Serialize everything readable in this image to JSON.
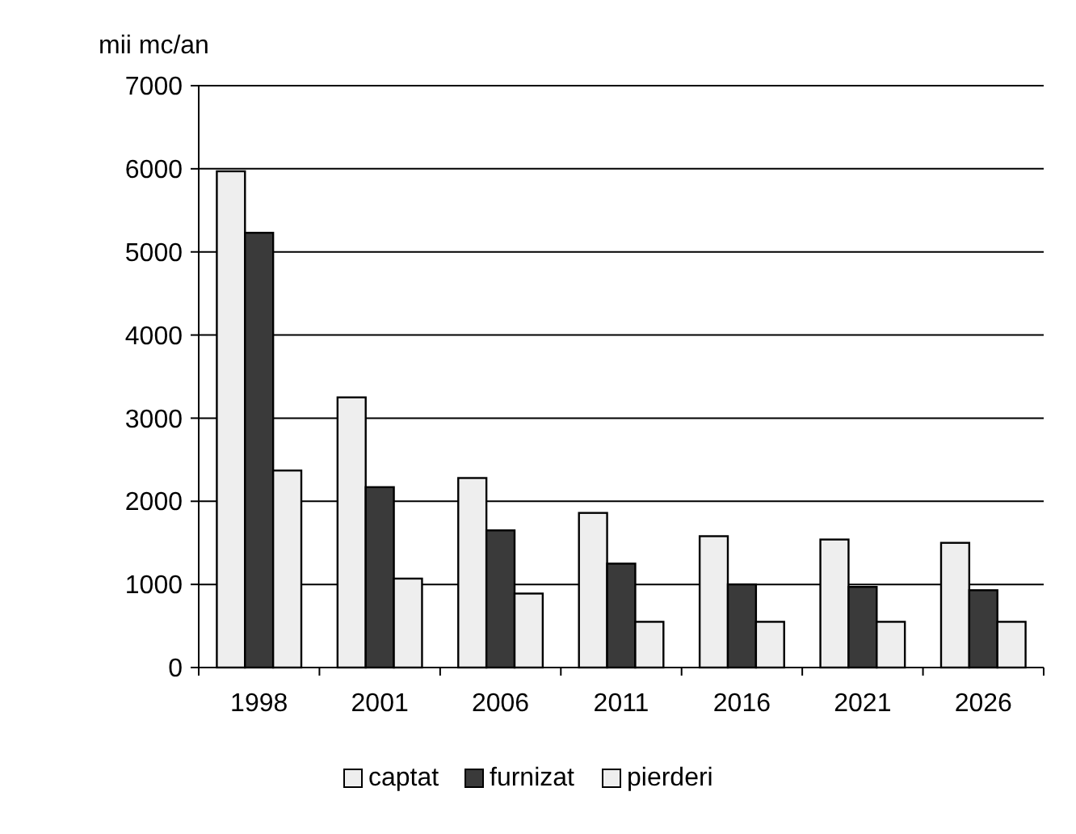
{
  "chart_data": {
    "type": "bar",
    "ylabel": "mii mc/an",
    "categories": [
      "1998",
      "2001",
      "2006",
      "2011",
      "2016",
      "2021",
      "2026"
    ],
    "series": [
      {
        "name": "captat",
        "color": "#eeeeee",
        "values": [
          5970,
          3250,
          2280,
          1860,
          1580,
          1540,
          1500
        ]
      },
      {
        "name": "furnizat",
        "color": "#3a3a3a",
        "values": [
          5230,
          2170,
          1650,
          1250,
          1000,
          970,
          930
        ]
      },
      {
        "name": "pierderi",
        "color": "#eeeeee",
        "values": [
          2370,
          1070,
          890,
          550,
          550,
          550,
          550
        ]
      }
    ],
    "ylim": [
      0,
      7000
    ],
    "yticks": [
      0,
      1000,
      2000,
      3000,
      4000,
      5000,
      6000,
      7000
    ],
    "grid": "y",
    "legend": "bottom"
  }
}
